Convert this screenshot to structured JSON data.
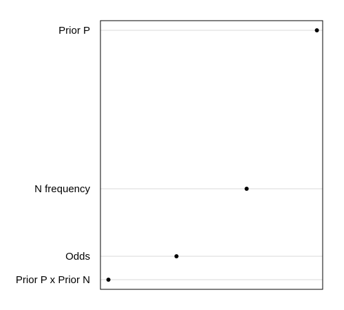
{
  "chart_data": {
    "type": "scatter",
    "title": "",
    "xlabel": "",
    "ylabel": "",
    "categories": [
      "Prior P",
      "N frequency",
      "Odds",
      "Prior P x Prior N"
    ],
    "values": [
      0.98,
      0.66,
      0.34,
      0.03
    ],
    "xlim": [
      0,
      1
    ],
    "grid": "horizontal",
    "legend": "none",
    "colors": {
      "point": "#000000",
      "grid": "#d9d9d9",
      "frame": "#000000"
    }
  }
}
